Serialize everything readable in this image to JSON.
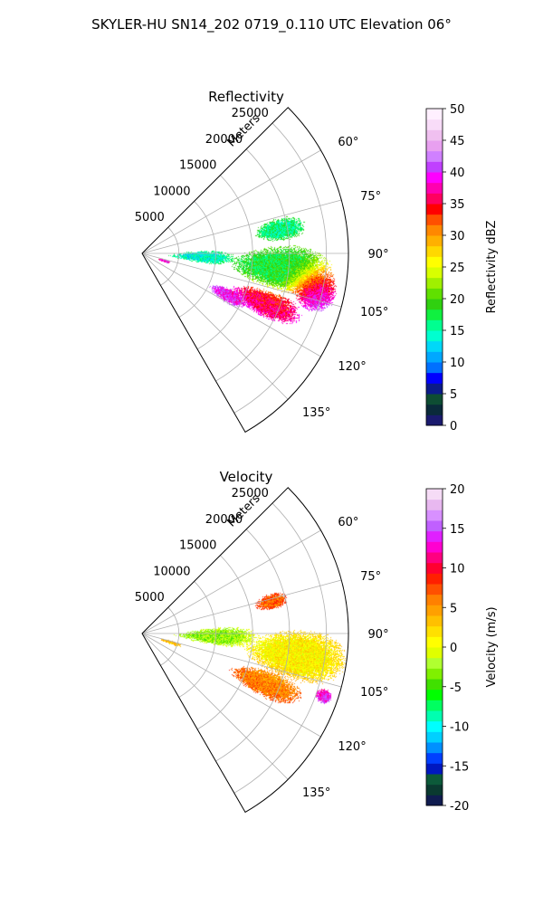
{
  "figure": {
    "title": "SKYLER-HU  SN14_202  0719_0.110 UTC Elevation 06°"
  },
  "panels": [
    {
      "id": "reflectivity",
      "title": "Reflectivity",
      "range_unit_label": "Meters",
      "range_tick_labels": [
        "5000",
        "10000",
        "15000",
        "20000",
        "25000"
      ],
      "azimuth_tick_labels": [
        "60°",
        "75°",
        "90°",
        "105°",
        "120°",
        "135°"
      ],
      "colorbar": {
        "label": "Reflectivity dBZ",
        "tick_labels": [
          "0",
          "5",
          "10",
          "15",
          "20",
          "25",
          "30",
          "35",
          "40",
          "45",
          "50"
        ]
      }
    },
    {
      "id": "velocity",
      "title": "Velocity",
      "range_unit_label": "Meters",
      "range_tick_labels": [
        "5000",
        "10000",
        "15000",
        "20000",
        "25000"
      ],
      "azimuth_tick_labels": [
        "60°",
        "75°",
        "90°",
        "105°",
        "120°",
        "135°"
      ],
      "colorbar": {
        "label": "Velocity (m/s)",
        "tick_labels": [
          "-20",
          "-15",
          "-10",
          "-5",
          "0",
          "5",
          "10",
          "15",
          "20"
        ]
      }
    }
  ],
  "chart_data": [
    {
      "type": "heatmap",
      "projection": "polar-sector",
      "title": "Reflectivity",
      "r_unit": "Meters",
      "r_lim": [
        0,
        28000
      ],
      "r_ticks": [
        5000,
        10000,
        15000,
        20000,
        25000
      ],
      "theta_lim_deg": [
        45,
        150
      ],
      "theta_ticks_deg": [
        60,
        75,
        90,
        105,
        120,
        135
      ],
      "grid": true,
      "colorbar": {
        "label": "Reflectivity dBZ",
        "range": [
          0,
          50
        ],
        "ticks": [
          0,
          5,
          10,
          15,
          20,
          25,
          30,
          35,
          40,
          45,
          50
        ],
        "colors": [
          "#1a1a6e",
          "#0a2a3a",
          "#0e4d33",
          "#0b1b8a",
          "#0000ff",
          "#0070ff",
          "#00a8ff",
          "#00d8f8",
          "#00ffd0",
          "#00ff90",
          "#10f040",
          "#30d010",
          "#60e000",
          "#a0f000",
          "#d8ff00",
          "#ffff00",
          "#ffd800",
          "#ffb000",
          "#ff8800",
          "#ff5000",
          "#ff0000",
          "#ff0060",
          "#ff00b0",
          "#ff00ff",
          "#c040ff",
          "#d080ff",
          "#e8a0f0",
          "#f0c0f0",
          "#f8dcf8",
          "#fff0ff"
        ]
      },
      "echo_regions": [
        {
          "az_deg": 102,
          "range_m": 24000,
          "az_spread_deg": 6,
          "range_spread_m": 2500,
          "value": 42
        },
        {
          "az_deg": 112,
          "range_m": 18000,
          "az_spread_deg": 5,
          "range_spread_m": 4500,
          "value": 36
        },
        {
          "az_deg": 116,
          "range_m": 13000,
          "az_spread_deg": 4,
          "range_spread_m": 2500,
          "value": 40
        },
        {
          "az_deg": 96,
          "range_m": 19000,
          "az_spread_deg": 8,
          "range_spread_m": 6000,
          "value": 18
        },
        {
          "az_deg": 80,
          "range_m": 19000,
          "az_spread_deg": 4,
          "range_spread_m": 3000,
          "value": 16
        },
        {
          "az_deg": 108,
          "range_m": 3000,
          "az_spread_deg": 3,
          "range_spread_m": 1000,
          "value": 38
        },
        {
          "az_deg": 93,
          "range_m": 8000,
          "az_spread_deg": 5,
          "range_spread_m": 4000,
          "value": 14
        }
      ]
    },
    {
      "type": "heatmap",
      "projection": "polar-sector",
      "title": "Velocity",
      "r_unit": "Meters",
      "r_lim": [
        0,
        28000
      ],
      "r_ticks": [
        5000,
        10000,
        15000,
        20000,
        25000
      ],
      "theta_lim_deg": [
        45,
        150
      ],
      "theta_ticks_deg": [
        60,
        75,
        90,
        105,
        120,
        135
      ],
      "grid": true,
      "colorbar": {
        "label": "Velocity (m/s)",
        "range": [
          -20,
          20
        ],
        "ticks": [
          -20,
          -15,
          -10,
          -5,
          0,
          5,
          10,
          15,
          20
        ],
        "colors": [
          "#101c50",
          "#0a3a30",
          "#0c5a3a",
          "#0018c0",
          "#0040ff",
          "#0090ff",
          "#00d0ff",
          "#00ffff",
          "#00ffb0",
          "#00ff60",
          "#00ff00",
          "#40e000",
          "#80f000",
          "#b0ff30",
          "#e0ff00",
          "#ffff00",
          "#ffe000",
          "#ffc000",
          "#ffa000",
          "#ff8000",
          "#ff5000",
          "#ff2000",
          "#ff0030",
          "#ff0080",
          "#ff00d0",
          "#e020ff",
          "#c060ff",
          "#d890ff",
          "#e8b8f0",
          "#f6dcf6"
        ]
      },
      "echo_regions": [
        {
          "az_deg": 112,
          "range_m": 18000,
          "az_spread_deg": 5,
          "range_spread_m": 4500,
          "value": 6
        },
        {
          "az_deg": 98,
          "range_m": 21000,
          "az_spread_deg": 8,
          "range_spread_m": 6000,
          "value": 1
        },
        {
          "az_deg": 92,
          "range_m": 10000,
          "az_spread_deg": 6,
          "range_spread_m": 5000,
          "value": -3
        },
        {
          "az_deg": 107,
          "range_m": 4000,
          "az_spread_deg": 3,
          "range_spread_m": 1500,
          "value": 3
        },
        {
          "az_deg": 76,
          "range_m": 18000,
          "az_spread_deg": 3,
          "range_spread_m": 2000,
          "value": 7
        },
        {
          "az_deg": 109,
          "range_m": 26000,
          "az_spread_deg": 2,
          "range_spread_m": 1000,
          "value": 15
        }
      ]
    }
  ]
}
